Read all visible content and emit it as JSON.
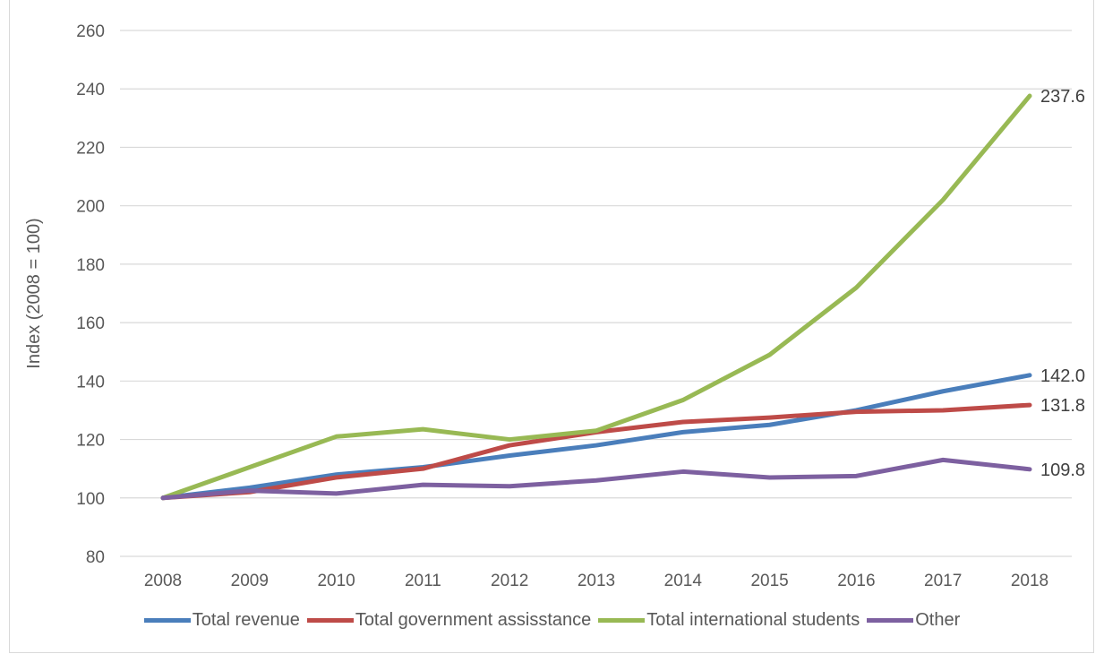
{
  "chart_data": {
    "type": "line",
    "title": "",
    "xlabel": "",
    "ylabel": "Index (2008 = 100)",
    "ylim": [
      80,
      260
    ],
    "yticks": [
      80,
      100,
      120,
      140,
      160,
      180,
      200,
      220,
      240,
      260
    ],
    "categories": [
      "2008",
      "2009",
      "2010",
      "2011",
      "2012",
      "2013",
      "2014",
      "2015",
      "2016",
      "2017",
      "2018"
    ],
    "grid": "horizontal",
    "legend_position": "bottom",
    "series": [
      {
        "name": "Total revenue",
        "color": "#4a7ebb",
        "values": [
          100,
          103.5,
          108,
          110.5,
          114.5,
          118,
          122.5,
          125,
          130,
          136.5,
          142.0
        ],
        "end_label": "142.0"
      },
      {
        "name": "Total government assisstance",
        "color": "#be4b48",
        "values": [
          100,
          102,
          107,
          110,
          118,
          122.5,
          126,
          127.5,
          129.5,
          130,
          131.8
        ],
        "end_label": "131.8"
      },
      {
        "name": "Total international students",
        "color": "#98b954",
        "values": [
          100,
          110.5,
          121,
          123.5,
          120,
          123,
          133.5,
          149,
          172,
          202,
          237.6
        ],
        "end_label": "237.6"
      },
      {
        "name": "Other",
        "color": "#7d60a0",
        "values": [
          100,
          102.5,
          101.5,
          104.5,
          104,
          106,
          109,
          107,
          107.5,
          113,
          109.8
        ],
        "end_label": "109.8"
      }
    ]
  }
}
